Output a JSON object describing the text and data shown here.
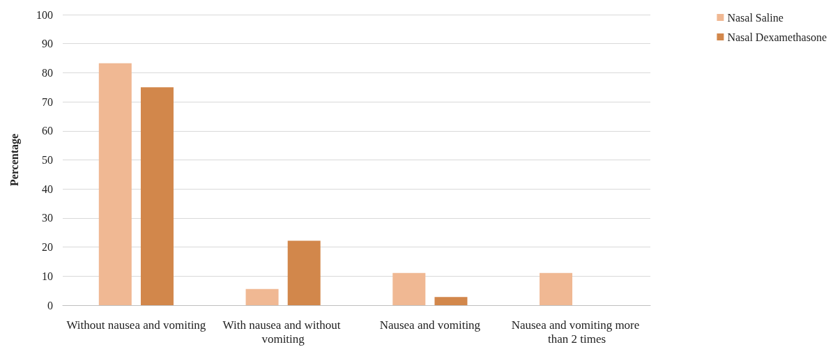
{
  "chart_data": {
    "type": "bar",
    "ylabel": "Percentage",
    "categories": [
      "Without nausea and vomiting",
      "With nausea and without vomiting",
      "Nausea and vomiting",
      "Nausea and vomiting more than 2 times"
    ],
    "series": [
      {
        "name": "Nasal Saline",
        "color": "#f0b893",
        "values": [
          83.3,
          5.6,
          11.1,
          11.1
        ]
      },
      {
        "name": "Nasal Dexamethasone",
        "color": "#d2874b",
        "values": [
          75,
          22.2,
          2.8,
          0
        ]
      }
    ],
    "ylim": [
      0,
      100
    ],
    "yticks": [
      0,
      10,
      20,
      30,
      40,
      50,
      60,
      70,
      80,
      90,
      100
    ],
    "grid": "y",
    "legend": "top right"
  }
}
